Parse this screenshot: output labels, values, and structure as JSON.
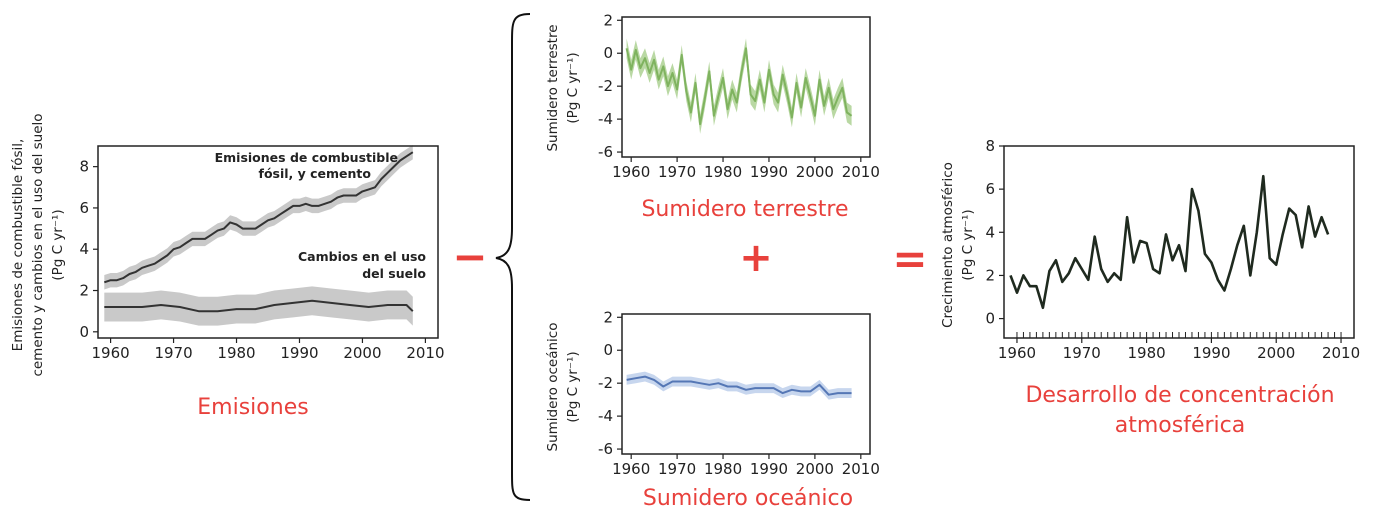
{
  "operators": {
    "minus": "−",
    "plus": "+",
    "equals": "="
  },
  "chart_data": [
    {
      "id": "emisiones",
      "type": "line",
      "title": "Emisiones",
      "ylabel_lines": [
        "Emisiones de combustible fósil,",
        "cemento y cambios en el uso del suelo",
        "(Pg C yr⁻¹)"
      ],
      "xticks": [
        1960,
        1970,
        1980,
        1990,
        2000,
        2010
      ],
      "yticks": [
        0,
        2,
        4,
        6,
        8
      ],
      "xlim": [
        1958,
        2012
      ],
      "ylim": [
        -0.3,
        9
      ],
      "annotations": [
        {
          "lines": [
            "Emisiones de combustible",
            "fósil, y cemento"
          ],
          "series": "fossil"
        },
        {
          "lines": [
            "Cambios en el uso",
            "del suelo"
          ],
          "series": "landuse"
        }
      ],
      "series": [
        {
          "key": "fossil",
          "band": 0.35,
          "color": "#333333",
          "x": [
            1959,
            1960,
            1961,
            1962,
            1963,
            1964,
            1965,
            1966,
            1967,
            1968,
            1969,
            1970,
            1971,
            1972,
            1973,
            1974,
            1975,
            1976,
            1977,
            1978,
            1979,
            1980,
            1981,
            1982,
            1983,
            1984,
            1985,
            1986,
            1987,
            1988,
            1989,
            1990,
            1991,
            1992,
            1993,
            1994,
            1995,
            1996,
            1997,
            1998,
            1999,
            2000,
            2001,
            2002,
            2003,
            2004,
            2005,
            2006,
            2007,
            2008
          ],
          "y": [
            2.4,
            2.5,
            2.5,
            2.6,
            2.8,
            2.9,
            3.1,
            3.2,
            3.3,
            3.5,
            3.7,
            4.0,
            4.1,
            4.3,
            4.5,
            4.5,
            4.5,
            4.7,
            4.9,
            5.0,
            5.3,
            5.2,
            5.0,
            5.0,
            5.0,
            5.2,
            5.4,
            5.5,
            5.7,
            5.9,
            6.1,
            6.1,
            6.2,
            6.1,
            6.1,
            6.2,
            6.3,
            6.5,
            6.6,
            6.6,
            6.6,
            6.8,
            6.9,
            7.0,
            7.4,
            7.7,
            8.0,
            8.3,
            8.5,
            8.7
          ]
        },
        {
          "key": "landuse",
          "band": 0.7,
          "color": "#333333",
          "x": [
            1959,
            1962,
            1965,
            1968,
            1971,
            1974,
            1977,
            1980,
            1983,
            1986,
            1989,
            1992,
            1995,
            1998,
            2001,
            2004,
            2007,
            2008
          ],
          "y": [
            1.2,
            1.2,
            1.2,
            1.3,
            1.2,
            1.0,
            1.0,
            1.1,
            1.1,
            1.3,
            1.4,
            1.5,
            1.4,
            1.3,
            1.2,
            1.3,
            1.3,
            1.0
          ]
        }
      ]
    },
    {
      "id": "terrestre",
      "type": "line",
      "title": "Sumidero terrestre",
      "ylabel_lines": [
        "Sumidero terrestre",
        "(Pg C yr⁻¹)"
      ],
      "xticks": [
        1960,
        1970,
        1980,
        1990,
        2000,
        2010
      ],
      "yticks": [
        2,
        0,
        -2,
        -4,
        -6
      ],
      "xlim": [
        1958,
        2012
      ],
      "ylim": [
        -6.3,
        2.2
      ],
      "series": [
        {
          "key": "land",
          "band": 0.6,
          "color": "#7fb35f",
          "x": [
            1959,
            1960,
            1961,
            1962,
            1963,
            1964,
            1965,
            1966,
            1967,
            1968,
            1969,
            1970,
            1971,
            1972,
            1973,
            1974,
            1975,
            1976,
            1977,
            1978,
            1979,
            1980,
            1981,
            1982,
            1983,
            1984,
            1985,
            1986,
            1987,
            1988,
            1989,
            1990,
            1991,
            1992,
            1993,
            1994,
            1995,
            1996,
            1997,
            1998,
            1999,
            2000,
            2001,
            2002,
            2003,
            2004,
            2005,
            2006,
            2007,
            2008
          ],
          "y": [
            0.3,
            -1.0,
            0.2,
            -0.9,
            -0.3,
            -1.2,
            -0.4,
            -1.6,
            -0.8,
            -2.0,
            -1.2,
            -2.2,
            -0.1,
            -2.3,
            -3.6,
            -1.8,
            -4.3,
            -2.8,
            -1.1,
            -3.8,
            -2.6,
            -1.5,
            -3.4,
            -2.2,
            -3.0,
            -1.2,
            0.3,
            -2.5,
            -2.9,
            -1.6,
            -3.0,
            -1.0,
            -2.5,
            -3.0,
            -1.3,
            -2.5,
            -3.9,
            -1.8,
            -3.3,
            -1.5,
            -2.6,
            -3.8,
            -1.6,
            -3.2,
            -2.1,
            -3.4,
            -2.7,
            -2.1,
            -3.6,
            -3.8
          ]
        }
      ]
    },
    {
      "id": "oceanico",
      "type": "line",
      "title": "Sumidero oceánico",
      "ylabel_lines": [
        "Sumidero oceánico",
        "(Pg C yr⁻¹)"
      ],
      "xticks": [
        1960,
        1970,
        1980,
        1990,
        2000,
        2010
      ],
      "yticks": [
        2,
        0,
        -2,
        -4,
        -6
      ],
      "xlim": [
        1958,
        2012
      ],
      "ylim": [
        -6.3,
        2.2
      ],
      "series": [
        {
          "key": "ocean",
          "band": 0.3,
          "color": "#5577b5",
          "x": [
            1959,
            1961,
            1963,
            1965,
            1967,
            1969,
            1971,
            1973,
            1975,
            1977,
            1979,
            1981,
            1983,
            1985,
            1987,
            1989,
            1991,
            1993,
            1995,
            1997,
            1999,
            2001,
            2003,
            2005,
            2007,
            2008
          ],
          "y": [
            -1.8,
            -1.7,
            -1.6,
            -1.8,
            -2.2,
            -1.9,
            -1.9,
            -1.9,
            -2.0,
            -2.1,
            -2.0,
            -2.2,
            -2.2,
            -2.4,
            -2.3,
            -2.3,
            -2.3,
            -2.6,
            -2.4,
            -2.5,
            -2.5,
            -2.1,
            -2.7,
            -2.6,
            -2.6,
            -2.6
          ]
        }
      ]
    },
    {
      "id": "atmosferica",
      "type": "line",
      "title_lines": [
        "Desarrollo de concentración",
        "atmosférica"
      ],
      "ylabel_lines": [
        "Crecimiento atmosférico",
        "(Pg C yr⁻¹)"
      ],
      "xticks": [
        1960,
        1970,
        1980,
        1990,
        2000,
        2010
      ],
      "yticks": [
        0,
        2,
        4,
        6,
        8
      ],
      "xlim": [
        1958,
        2012
      ],
      "ylim": [
        -0.9,
        8
      ],
      "series": [
        {
          "key": "atmos",
          "band": 0,
          "color": "#1f2a1f",
          "x": [
            1959,
            1960,
            1961,
            1962,
            1963,
            1964,
            1965,
            1966,
            1967,
            1968,
            1969,
            1970,
            1971,
            1972,
            1973,
            1974,
            1975,
            1976,
            1977,
            1978,
            1979,
            1980,
            1981,
            1982,
            1983,
            1984,
            1985,
            1986,
            1987,
            1988,
            1989,
            1990,
            1991,
            1992,
            1993,
            1994,
            1995,
            1996,
            1997,
            1998,
            1999,
            2000,
            2001,
            2002,
            2003,
            2004,
            2005,
            2006,
            2007,
            2008
          ],
          "y": [
            2.0,
            1.2,
            2.0,
            1.5,
            1.5,
            0.5,
            2.2,
            2.7,
            1.7,
            2.1,
            2.8,
            2.3,
            1.8,
            3.8,
            2.3,
            1.7,
            2.1,
            1.8,
            4.7,
            2.6,
            3.6,
            3.5,
            2.3,
            2.1,
            3.9,
            2.7,
            3.4,
            2.2,
            6.0,
            5.0,
            3.0,
            2.6,
            1.8,
            1.3,
            2.3,
            3.4,
            4.3,
            2.0,
            4.0,
            6.6,
            2.8,
            2.5,
            3.9,
            5.1,
            4.8,
            3.3,
            5.2,
            3.8,
            4.7,
            3.9
          ]
        }
      ]
    }
  ]
}
